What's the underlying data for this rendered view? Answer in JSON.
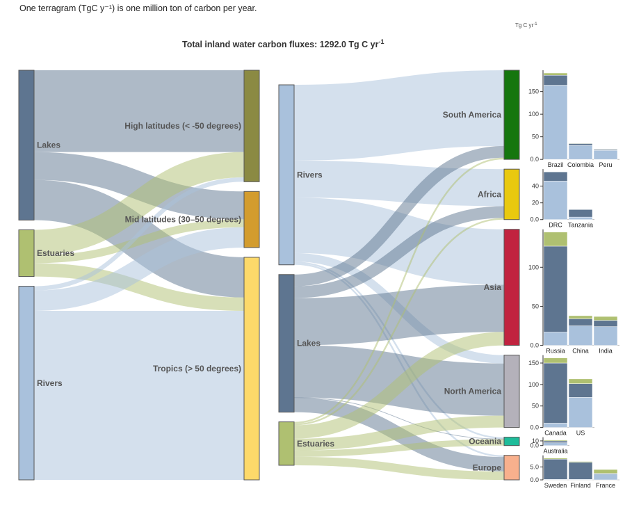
{
  "note": "One terragram (TgC y⁻¹) is one million ton of carbon per year.",
  "title": "Total inland water carbon fluxes: 1292.0 Tg C yr",
  "title_sup": "-1",
  "unit_label": "Tg C yr",
  "unit_sup": "-1",
  "colors": {
    "lakes": "#5e7590",
    "estuaries": "#afc071",
    "rivers": "#a9c1dc",
    "high_lat": "#8b8a43",
    "mid_lat": "#d39c2e",
    "tropics": "#fdd96a",
    "south_america": "#15760e",
    "africa": "#e9c90f",
    "asia": "#c1233f",
    "north_america": "#b4b1ba",
    "oceania": "#1ebc9a",
    "europe": "#f8b08d"
  },
  "chart_data": [
    {
      "type": "sankey",
      "name": "type-to-latitude",
      "nodes": [
        {
          "id": "lakes_left",
          "label": "Lakes",
          "color": "lakes"
        },
        {
          "id": "estuaries_left",
          "label": "Estuaries",
          "color": "estuaries"
        },
        {
          "id": "rivers_left",
          "label": "Rivers",
          "color": "rivers"
        },
        {
          "id": "high_lat",
          "label": "High latitudes (< -50 degrees)",
          "color": "high_lat"
        },
        {
          "id": "mid_lat",
          "label": "Mid latitudes (30–50 degrees)",
          "color": "mid_lat"
        },
        {
          "id": "tropics",
          "label": "Tropics (> 50 degrees)",
          "color": "tropics"
        }
      ],
      "links": [
        {
          "source": "lakes_left",
          "target": "high_lat",
          "value": 226
        },
        {
          "source": "lakes_left",
          "target": "mid_lat",
          "value": 77
        },
        {
          "source": "lakes_left",
          "target": "tropics",
          "value": 111
        },
        {
          "source": "estuaries_left",
          "target": "high_lat",
          "value": 70
        },
        {
          "source": "estuaries_left",
          "target": "mid_lat",
          "value": 22
        },
        {
          "source": "estuaries_left",
          "target": "tropics",
          "value": 37
        },
        {
          "source": "rivers_left",
          "target": "high_lat",
          "value": 12
        },
        {
          "source": "rivers_left",
          "target": "mid_lat",
          "value": 56
        },
        {
          "source": "rivers_left",
          "target": "tropics",
          "value": 467
        }
      ]
    },
    {
      "type": "sankey",
      "name": "type-to-continent",
      "nodes": [
        {
          "id": "rivers_mid",
          "label": "Rivers",
          "color": "rivers"
        },
        {
          "id": "lakes_mid",
          "label": "Lakes",
          "color": "lakes"
        },
        {
          "id": "estuaries_mid",
          "label": "Estuaries",
          "color": "estuaries"
        },
        {
          "id": "south_america",
          "label": "South America",
          "color": "south_america"
        },
        {
          "id": "africa",
          "label": "Africa",
          "color": "africa"
        },
        {
          "id": "asia",
          "label": "Asia",
          "color": "asia"
        },
        {
          "id": "north_america",
          "label": "North America",
          "color": "north_america"
        },
        {
          "id": "oceania",
          "label": "Oceania",
          "color": "oceania"
        },
        {
          "id": "europe",
          "label": "Europe",
          "color": "europe"
        }
      ],
      "links": [
        {
          "source": "rivers_mid",
          "target": "south_america",
          "value": 225
        },
        {
          "source": "rivers_mid",
          "target": "africa",
          "value": 110
        },
        {
          "source": "rivers_mid",
          "target": "asia",
          "value": 165
        },
        {
          "source": "rivers_mid",
          "target": "north_america",
          "value": 25
        },
        {
          "source": "rivers_mid",
          "target": "oceania",
          "value": 5
        },
        {
          "source": "rivers_mid",
          "target": "europe",
          "value": 5
        },
        {
          "source": "lakes_mid",
          "target": "south_america",
          "value": 35
        },
        {
          "source": "lakes_mid",
          "target": "africa",
          "value": 35
        },
        {
          "source": "lakes_mid",
          "target": "asia",
          "value": 140
        },
        {
          "source": "lakes_mid",
          "target": "north_america",
          "value": 155
        },
        {
          "source": "lakes_mid",
          "target": "oceania",
          "value": 1
        },
        {
          "source": "lakes_mid",
          "target": "europe",
          "value": 43
        },
        {
          "source": "estuaries_mid",
          "target": "south_america",
          "value": 5
        },
        {
          "source": "estuaries_mid",
          "target": "africa",
          "value": 5
        },
        {
          "source": "estuaries_mid",
          "target": "asia",
          "value": 40
        },
        {
          "source": "estuaries_mid",
          "target": "north_america",
          "value": 35
        },
        {
          "source": "estuaries_mid",
          "target": "oceania",
          "value": 19
        },
        {
          "source": "estuaries_mid",
          "target": "europe",
          "value": 25
        }
      ]
    },
    {
      "type": "bar",
      "stacked": true,
      "continent": "South America",
      "categories": [
        "Brazil",
        "Colombia",
        "Peru"
      ],
      "series": [
        {
          "key": "rivers",
          "values": [
            164,
            31,
            20
          ]
        },
        {
          "key": "lakes",
          "values": [
            22,
            4,
            2
          ]
        },
        {
          "key": "estuaries",
          "values": [
            5,
            1,
            1
          ]
        }
      ],
      "yticks": [
        0,
        50,
        100,
        150
      ],
      "ytick_labels": [
        "0.0",
        "50",
        "100",
        "150"
      ],
      "ylim": [
        0,
        191
      ]
    },
    {
      "type": "bar",
      "stacked": true,
      "continent": "Africa",
      "categories": [
        "DRC",
        "Tanzania"
      ],
      "series": [
        {
          "key": "rivers",
          "values": [
            46,
            3
          ]
        },
        {
          "key": "lakes",
          "values": [
            11,
            9
          ]
        },
        {
          "key": "estuaries",
          "values": [
            0,
            0
          ]
        }
      ],
      "yticks": [
        0,
        20,
        40
      ],
      "ytick_labels": [
        "0.0",
        "20",
        "40"
      ],
      "ylim": [
        0,
        57
      ]
    },
    {
      "type": "bar",
      "stacked": true,
      "continent": "Asia",
      "categories": [
        "Russia",
        "China",
        "India"
      ],
      "series": [
        {
          "key": "rivers",
          "values": [
            17,
            25,
            24
          ]
        },
        {
          "key": "lakes",
          "values": [
            110,
            9,
            8
          ]
        },
        {
          "key": "estuaries",
          "values": [
            18,
            4,
            5
          ]
        }
      ],
      "yticks": [
        0,
        50,
        100
      ],
      "ytick_labels": [
        "0.0",
        "50",
        "100"
      ],
      "ylim": [
        0,
        145
      ]
    },
    {
      "type": "bar",
      "stacked": true,
      "continent": "North America",
      "categories": [
        "Canada",
        "US"
      ],
      "series": [
        {
          "key": "rivers",
          "values": [
            10,
            70
          ]
        },
        {
          "key": "lakes",
          "values": [
            140,
            32
          ]
        },
        {
          "key": "estuaries",
          "values": [
            12,
            11
          ]
        }
      ],
      "yticks": [
        0,
        50,
        100,
        150
      ],
      "ytick_labels": [
        "0.0",
        "50",
        "100",
        "150"
      ],
      "ylim": [
        0,
        162
      ]
    },
    {
      "type": "bar",
      "stacked": true,
      "continent": "Oceania",
      "categories": [
        "Australia"
      ],
      "series": [
        {
          "key": "rivers",
          "values": [
            6
          ]
        },
        {
          "key": "lakes",
          "values": [
            4
          ]
        },
        {
          "key": "estuaries",
          "values": [
            2
          ]
        }
      ],
      "yticks": [
        0,
        10
      ],
      "ytick_labels": [
        "0.0",
        "10"
      ],
      "ylim": [
        0,
        12
      ]
    },
    {
      "type": "bar",
      "stacked": true,
      "continent": "Europe",
      "categories": [
        "Sweden",
        "Finland",
        "France"
      ],
      "series": [
        {
          "key": "rivers",
          "values": [
            0.2,
            0.2,
            2.2
          ]
        },
        {
          "key": "lakes",
          "values": [
            7.8,
            6.6,
            0.3
          ]
        },
        {
          "key": "estuaries",
          "values": [
            0.4,
            0.3,
            1.5
          ]
        }
      ],
      "yticks": [
        0,
        5
      ],
      "ytick_labels": [
        "0.0",
        "5.0"
      ],
      "ylim": [
        0,
        8.4
      ]
    }
  ]
}
